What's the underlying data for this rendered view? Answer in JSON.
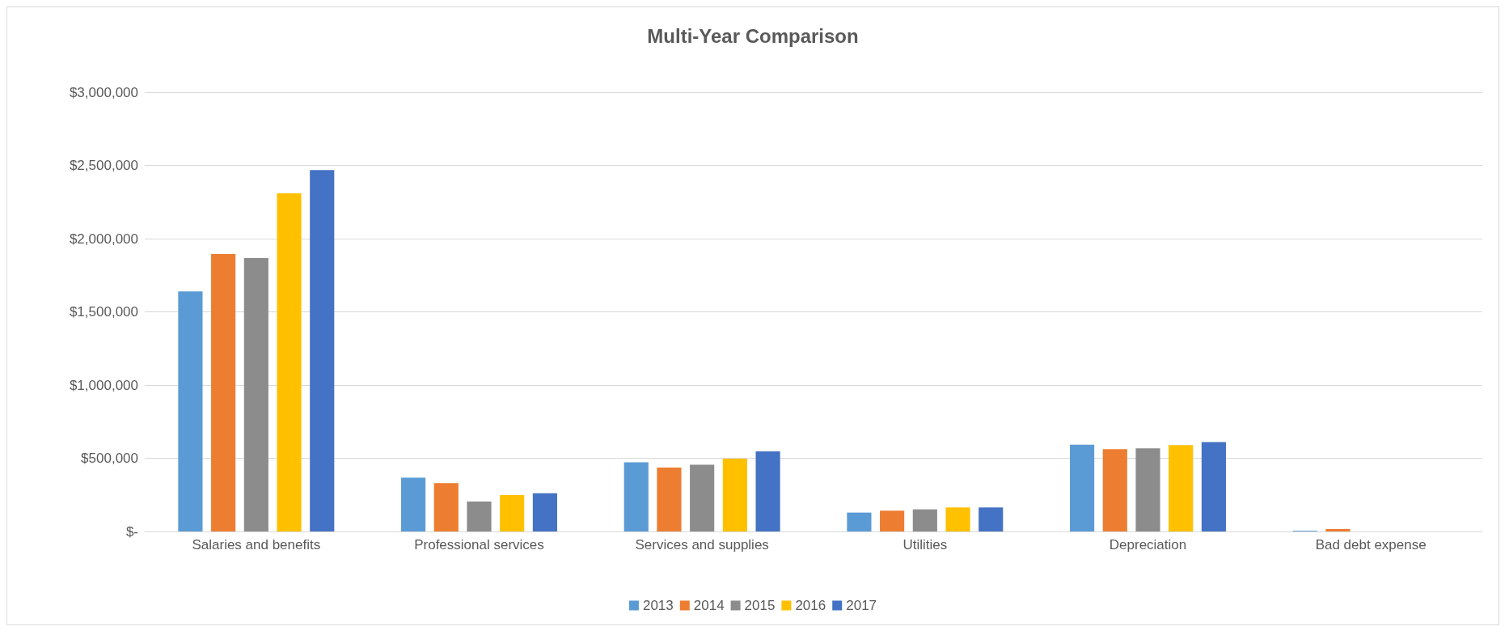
{
  "chart_data": {
    "type": "bar",
    "title": "Multi-Year Comparison",
    "categories": [
      "Salaries and benefits",
      "Professional services",
      "Services and supplies",
      "Utilities",
      "Depreciation",
      "Bad debt expense"
    ],
    "series": [
      {
        "name": "2013",
        "color": "#5b9bd5",
        "values": [
          1640000,
          368000,
          472000,
          129000,
          593000,
          5000
        ]
      },
      {
        "name": "2014",
        "color": "#ed7d31",
        "values": [
          1895000,
          330000,
          437000,
          142000,
          562000,
          17000
        ]
      },
      {
        "name": "2015",
        "color": "#8c8c8c",
        "values": [
          1867000,
          204000,
          456000,
          151000,
          567000,
          0
        ]
      },
      {
        "name": "2016",
        "color": "#ffc000",
        "values": [
          2310000,
          248000,
          497000,
          164000,
          590000,
          0
        ]
      },
      {
        "name": "2017",
        "color": "#4472c4",
        "values": [
          2468000,
          261000,
          547000,
          164000,
          610000,
          0
        ]
      }
    ],
    "ylim": [
      0,
      3000000
    ],
    "yticks": [
      {
        "value": 0,
        "label": "$-"
      },
      {
        "value": 500000,
        "label": "$500,000"
      },
      {
        "value": 1000000,
        "label": "$1,000,000"
      },
      {
        "value": 1500000,
        "label": "$1,500,000"
      },
      {
        "value": 2000000,
        "label": "$2,000,000"
      },
      {
        "value": 2500000,
        "label": "$2,500,000"
      },
      {
        "value": 3000000,
        "label": "$3,000,000"
      }
    ],
    "grid": "y",
    "legend": "bottom"
  }
}
